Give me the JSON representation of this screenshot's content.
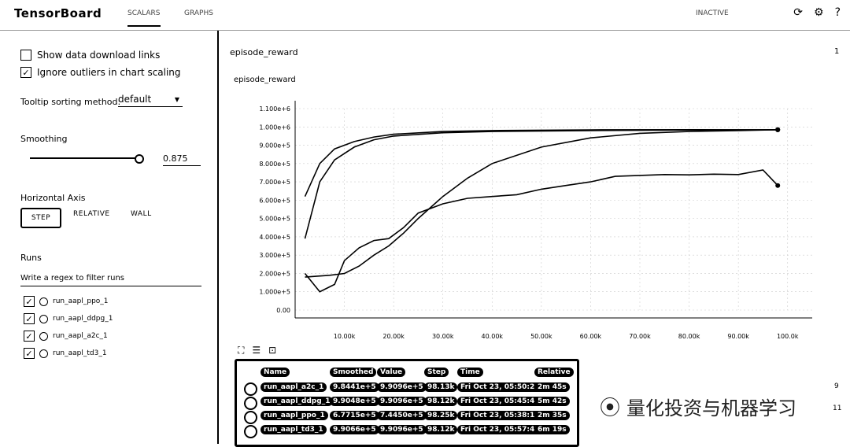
{
  "app": {
    "brand": "TensorBoard",
    "tabs": [
      "SCALARS",
      "GRAPHS"
    ],
    "inactive_label": "INACTIVE"
  },
  "sidebar": {
    "show_download": "Show data download links",
    "ignore_outliers": "Ignore outliers in chart scaling",
    "tooltip_label": "Tooltip sorting method:",
    "tooltip_value": "default",
    "smoothing_label": "Smoothing",
    "smoothing_value": "0.875",
    "haxis_label": "Horizontal Axis",
    "haxis_options": [
      "STEP",
      "RELATIVE",
      "WALL"
    ],
    "runs_label": "Runs",
    "filter_placeholder": "Write a regex to filter runs",
    "runs": [
      "run_aapl_ppo_1",
      "run_aapl_ddpg_1",
      "run_aapl_a2c_1",
      "run_aapl_td3_1"
    ]
  },
  "main": {
    "section_title": "episode_reward",
    "section_count": "1",
    "side_nums": [
      "9",
      "11"
    ]
  },
  "chart_data": {
    "type": "line",
    "title": "episode_reward",
    "xlabel": "",
    "ylabel": "",
    "x_ticks": [
      "10.00k",
      "20.00k",
      "30.00k",
      "40.00k",
      "50.00k",
      "60.00k",
      "70.00k",
      "80.00k",
      "90.00k",
      "100.0k"
    ],
    "y_ticks": [
      "0.00",
      "1.000e+5",
      "2.000e+5",
      "3.000e+5",
      "4.000e+5",
      "5.000e+5",
      "6.000e+5",
      "7.000e+5",
      "8.000e+5",
      "9.000e+5",
      "1.000e+6",
      "1.100e+6"
    ],
    "xlim": [
      0,
      105000
    ],
    "ylim": [
      0,
      1100000
    ],
    "series": [
      {
        "name": "run_aapl_a2c_1",
        "x": [
          2000,
          5000,
          8000,
          12000,
          16000,
          20000,
          30000,
          40000,
          60000,
          80000,
          98000
        ],
        "values": [
          620000,
          800000,
          880000,
          920000,
          945000,
          960000,
          975000,
          980000,
          984000,
          985000,
          984000
        ]
      },
      {
        "name": "run_aapl_td3_1",
        "x": [
          2000,
          5000,
          8000,
          12000,
          16000,
          20000,
          30000,
          40000,
          60000,
          80000,
          98000
        ],
        "values": [
          390000,
          700000,
          820000,
          890000,
          930000,
          950000,
          968000,
          975000,
          980000,
          983000,
          985000
        ]
      },
      {
        "name": "run_aapl_ddpg_1",
        "x": [
          2000,
          7000,
          10000,
          13000,
          16000,
          19000,
          22000,
          25000,
          30000,
          35000,
          40000,
          50000,
          60000,
          70000,
          80000,
          90000,
          98000
        ],
        "values": [
          180000,
          190000,
          200000,
          240000,
          300000,
          350000,
          420000,
          500000,
          620000,
          720000,
          800000,
          890000,
          940000,
          965000,
          975000,
          980000,
          985000
        ]
      },
      {
        "name": "run_aapl_ppo_1",
        "x": [
          2000,
          5000,
          8000,
          10000,
          13000,
          16000,
          19000,
          22000,
          25000,
          30000,
          35000,
          40000,
          45000,
          50000,
          55000,
          60000,
          65000,
          70000,
          75000,
          80000,
          85000,
          90000,
          95000,
          98000
        ],
        "values": [
          200000,
          100000,
          140000,
          270000,
          340000,
          380000,
          390000,
          450000,
          530000,
          580000,
          610000,
          620000,
          630000,
          660000,
          680000,
          700000,
          730000,
          735000,
          740000,
          738000,
          742000,
          740000,
          765000,
          680000
        ]
      }
    ],
    "grid": true
  },
  "tooltip": {
    "headers": [
      "Name",
      "Smoothed",
      "Value",
      "Step",
      "Time",
      "Relative"
    ],
    "rows": [
      [
        "run_aapl_a2c_1",
        "9.8441e+5",
        "9.9096e+5",
        "98.13k",
        "Fri Oct 23, 05:50:26",
        "2m 45s"
      ],
      [
        "run_aapl_ddpg_1",
        "9.9048e+5",
        "9.9096e+5",
        "98.12k",
        "Fri Oct 23, 05:45:44",
        "5m 42s"
      ],
      [
        "run_aapl_ppo_1",
        "6.7715e+5",
        "7.4450e+5",
        "98.25k",
        "Fri Oct 23, 05:38:10",
        "2m 35s"
      ],
      [
        "run_aapl_td3_1",
        "9.9066e+5",
        "9.9096e+5",
        "98.12k",
        "Fri Oct 23, 05:57:49",
        "6m 19s"
      ]
    ]
  },
  "watermark": "量化投资与机器学习"
}
